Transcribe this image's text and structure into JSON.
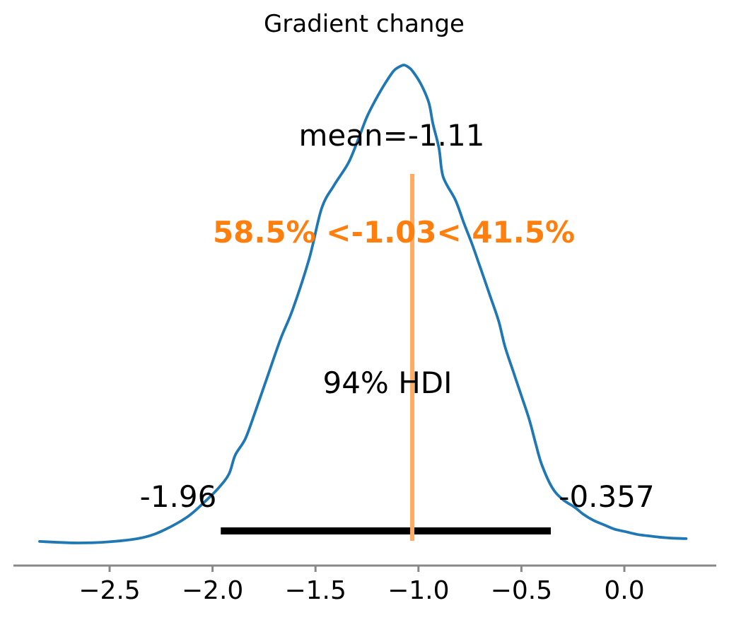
{
  "title": "Gradient change",
  "colors": {
    "curve": "#1f77b4",
    "ref_line": "#ffac62",
    "ref_text": "#ff7f0e",
    "hdi_bar": "#000000",
    "axis": "#888888",
    "text": "#000000"
  },
  "labels": {
    "mean": "mean=-1.11",
    "ref": "58.5% <-1.03< 41.5%",
    "hdi": "94% HDI",
    "hdi_lower": "-1.96",
    "hdi_upper": "-0.357"
  },
  "chart_data": {
    "type": "line",
    "title": "Gradient change",
    "xlabel": "",
    "ylabel": "",
    "xlim": [
      -2.97,
      0.45
    ],
    "ylim": [
      0,
      1.08
    ],
    "grid": false,
    "legend": "none",
    "x_ticks": [
      {
        "value": -2.5,
        "label": "−2.5"
      },
      {
        "value": -2.0,
        "label": "−2.0"
      },
      {
        "value": -1.5,
        "label": "−1.5"
      },
      {
        "value": -1.0,
        "label": "−1.0"
      },
      {
        "value": -0.5,
        "label": "−0.5"
      },
      {
        "value": 0.0,
        "label": "0.0"
      }
    ],
    "stats": {
      "mean": -1.11,
      "ref_val": -1.03,
      "pct_below_ref": 58.5,
      "pct_above_ref": 41.5,
      "hdi_prob_pct": 94,
      "hdi_lower": -1.96,
      "hdi_upper": -0.357
    },
    "kde": {
      "x": [
        -2.84,
        -2.65,
        -2.48,
        -2.33,
        -2.23,
        -2.12,
        -2.04,
        -1.97,
        -1.92,
        -1.89,
        -1.84,
        -1.79,
        -1.73,
        -1.67,
        -1.61,
        -1.53,
        -1.47,
        -1.41,
        -1.34,
        -1.29,
        -1.25,
        -1.21,
        -1.16,
        -1.12,
        -1.09,
        -1.07,
        -1.05,
        -1.03,
        -0.99,
        -0.95,
        -0.93,
        -0.9,
        -0.88,
        -0.82,
        -0.78,
        -0.74,
        -0.7,
        -0.65,
        -0.61,
        -0.58,
        -0.54,
        -0.5,
        -0.46,
        -0.43,
        -0.4,
        -0.35,
        -0.3,
        -0.24,
        -0.2,
        -0.15,
        -0.1,
        -0.05,
        0.0,
        0.06,
        0.11,
        0.17,
        0.23,
        0.3
      ],
      "density": [
        0.006,
        0.003,
        0.006,
        0.015,
        0.031,
        0.058,
        0.088,
        0.118,
        0.147,
        0.186,
        0.221,
        0.28,
        0.354,
        0.428,
        0.491,
        0.597,
        0.701,
        0.749,
        0.796,
        0.848,
        0.892,
        0.926,
        0.963,
        0.988,
        0.997,
        1.0,
        0.996,
        0.988,
        0.962,
        0.922,
        0.878,
        0.826,
        0.767,
        0.718,
        0.671,
        0.627,
        0.578,
        0.516,
        0.465,
        0.413,
        0.361,
        0.31,
        0.258,
        0.209,
        0.165,
        0.118,
        0.094,
        0.077,
        0.063,
        0.05,
        0.041,
        0.032,
        0.027,
        0.021,
        0.018,
        0.015,
        0.013,
        0.012
      ]
    }
  }
}
